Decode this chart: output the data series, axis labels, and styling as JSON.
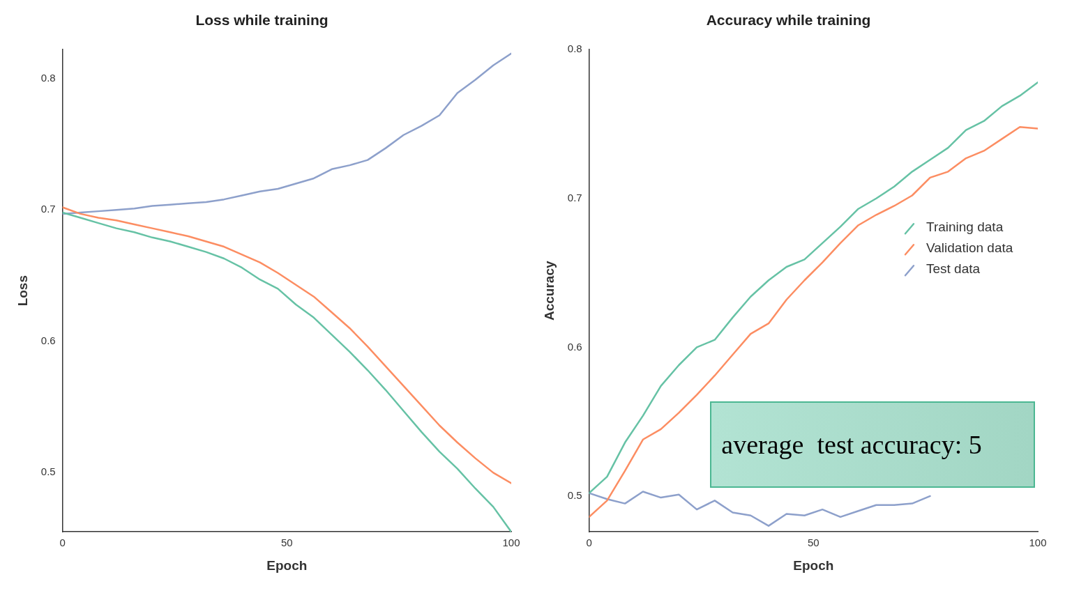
{
  "chart_data": [
    {
      "type": "line",
      "title": "Loss while training",
      "xlabel": "Epoch",
      "ylabel": "Loss",
      "xlim": [
        0,
        100
      ],
      "xticks": [
        0,
        50,
        100
      ],
      "ylim": [
        0.455,
        0.822
      ],
      "yticks": [
        0.5,
        0.6,
        0.7,
        0.8
      ],
      "grid": false,
      "legend": false,
      "marker": "none",
      "line_style": "solid",
      "series": [
        {
          "color": "#66c2a5",
          "x": [
            0,
            4,
            8,
            12,
            16,
            20,
            24,
            28,
            32,
            36,
            40,
            44,
            48,
            52,
            56,
            60,
            64,
            68,
            72,
            76,
            80,
            84,
            88,
            92,
            96,
            100
          ],
          "values": [
            0.698,
            0.694,
            0.69,
            0.686,
            0.683,
            0.679,
            0.676,
            0.672,
            0.668,
            0.663,
            0.656,
            0.647,
            0.64,
            0.628,
            0.618,
            0.605,
            0.592,
            0.578,
            0.563,
            0.547,
            0.531,
            0.516,
            0.503,
            0.488,
            0.474,
            0.455
          ]
        },
        {
          "color": "#fc8d62",
          "x": [
            0,
            4,
            8,
            12,
            16,
            20,
            24,
            28,
            32,
            36,
            40,
            44,
            48,
            52,
            56,
            60,
            64,
            68,
            72,
            76,
            80,
            84,
            88,
            92,
            96,
            100
          ],
          "values": [
            0.702,
            0.697,
            0.694,
            0.692,
            0.689,
            0.686,
            0.683,
            0.68,
            0.676,
            0.672,
            0.666,
            0.66,
            0.652,
            0.643,
            0.634,
            0.622,
            0.61,
            0.596,
            0.581,
            0.566,
            0.551,
            0.536,
            0.523,
            0.511,
            0.5,
            0.492
          ]
        },
        {
          "color": "#8da0cb",
          "x": [
            0,
            4,
            8,
            12,
            16,
            20,
            24,
            28,
            32,
            36,
            40,
            44,
            48,
            52,
            56,
            60,
            64,
            68,
            72,
            76,
            80,
            84,
            88,
            92,
            96,
            100
          ],
          "values": [
            0.697,
            0.698,
            0.699,
            0.7,
            0.701,
            0.703,
            0.704,
            0.705,
            0.706,
            0.708,
            0.711,
            0.714,
            0.716,
            0.72,
            0.724,
            0.731,
            0.734,
            0.738,
            0.747,
            0.757,
            0.764,
            0.772,
            0.789,
            0.799,
            0.81,
            0.819
          ]
        }
      ]
    },
    {
      "type": "line",
      "title": "Accuracy while training",
      "xlabel": "Epoch",
      "ylabel": "Accuracy",
      "xlim": [
        0,
        100
      ],
      "xticks": [
        0,
        50,
        100
      ],
      "ylim": [
        0.476,
        0.8
      ],
      "yticks": [
        0.5,
        0.6,
        0.7,
        0.8
      ],
      "grid": false,
      "legend": "right",
      "marker": "none",
      "line_style": "solid",
      "annotations": [
        "average  test accuracy: 5"
      ],
      "series": [
        {
          "name": "Training data",
          "color": "#66c2a5",
          "x": [
            0,
            4,
            8,
            12,
            16,
            20,
            24,
            28,
            32,
            36,
            40,
            44,
            48,
            52,
            56,
            60,
            64,
            68,
            72,
            76,
            80,
            84,
            88,
            92,
            96,
            100
          ],
          "values": [
            0.502,
            0.513,
            0.536,
            0.554,
            0.574,
            0.588,
            0.6,
            0.605,
            0.62,
            0.634,
            0.645,
            0.654,
            0.659,
            0.67,
            0.681,
            0.693,
            0.7,
            0.708,
            0.718,
            0.726,
            0.734,
            0.746,
            0.752,
            0.762,
            0.769,
            0.778
          ]
        },
        {
          "name": "Validation data",
          "color": "#fc8d62",
          "x": [
            0,
            4,
            8,
            12,
            16,
            20,
            24,
            28,
            32,
            36,
            40,
            44,
            48,
            52,
            56,
            60,
            64,
            68,
            72,
            76,
            80,
            84,
            88,
            92,
            96,
            100
          ],
          "values": [
            0.486,
            0.497,
            0.517,
            0.538,
            0.545,
            0.556,
            0.568,
            0.581,
            0.595,
            0.609,
            0.616,
            0.632,
            0.645,
            0.657,
            0.67,
            0.682,
            0.689,
            0.695,
            0.702,
            0.714,
            0.718,
            0.727,
            0.732,
            0.74,
            0.748,
            0.747
          ]
        },
        {
          "name": "Test data",
          "color": "#8da0cb",
          "x": [
            0,
            4,
            8,
            12,
            16,
            20,
            24,
            28,
            32,
            36,
            40,
            44,
            48,
            52,
            56,
            60,
            64,
            68,
            72,
            76
          ],
          "values": [
            0.502,
            0.498,
            0.495,
            0.503,
            0.499,
            0.501,
            0.491,
            0.497,
            0.489,
            0.487,
            0.48,
            0.488,
            0.487,
            0.491,
            0.486,
            0.49,
            0.494,
            0.494,
            0.495,
            0.5
          ]
        }
      ]
    }
  ]
}
